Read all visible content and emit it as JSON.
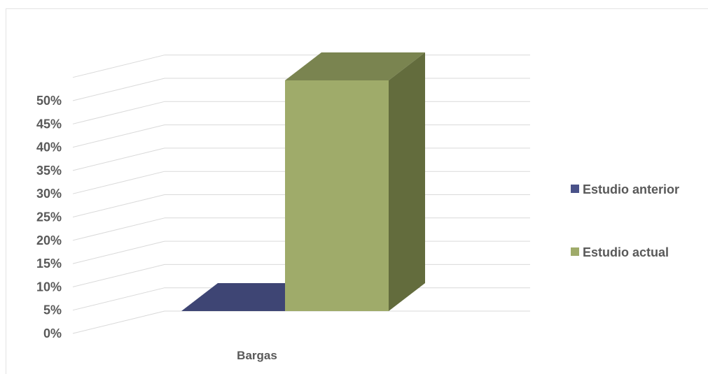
{
  "chart_data": {
    "type": "bar",
    "categories": [
      "Bargas"
    ],
    "series": [
      {
        "name": "Estudio anterior",
        "values": [
          0
        ],
        "color": "#4a5289",
        "color_top": "#3e4574"
      },
      {
        "name": "Estudio actual",
        "values": [
          0.5
        ],
        "color": "#9fab6a",
        "color_side": "#636c3d",
        "color_top": "#7a8450"
      }
    ],
    "yticks": [
      "0%",
      "5%",
      "10%",
      "15%",
      "20%",
      "25%",
      "30%",
      "35%",
      "40%",
      "45%",
      "50%"
    ],
    "ylim": [
      0,
      0.5
    ],
    "grid": true,
    "legend_position": "right",
    "style": "3d-bar"
  }
}
